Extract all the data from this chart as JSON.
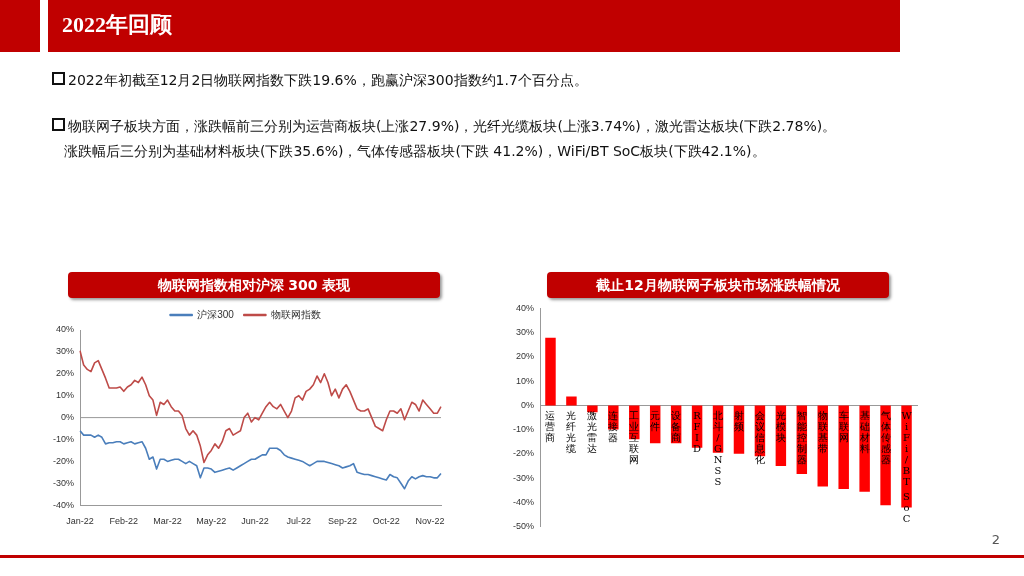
{
  "chart_data": [
    {
      "type": "other",
      "title": "2022年回顾",
      "annotations": [
        "2022年初截至12月2日物联网指数下跌19.6%，跑赢沪深300指数约1.7个百分点。",
        "物联网子板块方面，涨跌幅前三分别为运营商板块(上涨27.9%)，光纤光缆板块(上涨3.74%)，激光雷达板块(下跌2.78%)。",
        "涨跌幅后三分别为基础材料板块(下跌35.6%)，气体传感器板块(下跌 41.2%)，WiFi/BT SoC板块(下跌42.1%)。",
        "2"
      ]
    },
    {
      "type": "line",
      "title": "物联网指数相对沪深 300 表现",
      "legend": "top",
      "grid": false,
      "marker": "none",
      "categories": [
        "Jan-22",
        null,
        null,
        null,
        null,
        null,
        null,
        null,
        null,
        null,
        null,
        null,
        "Feb-22",
        null,
        null,
        null,
        null,
        null,
        null,
        null,
        null,
        null,
        null,
        null,
        "Mar-22",
        null,
        null,
        null,
        null,
        null,
        null,
        null,
        null,
        null,
        null,
        null,
        "May-22",
        null,
        null,
        null,
        null,
        null,
        null,
        null,
        null,
        null,
        null,
        null,
        "Jun-22",
        null,
        null,
        null,
        null,
        null,
        null,
        null,
        null,
        null,
        null,
        null,
        "Jul-22",
        null,
        null,
        null,
        null,
        null,
        null,
        null,
        null,
        null,
        null,
        null,
        "Sep-22",
        null,
        null,
        null,
        null,
        null,
        null,
        null,
        null,
        null,
        null,
        null,
        "Oct-22",
        null,
        null,
        null,
        null,
        null,
        null,
        null,
        null,
        null,
        null,
        null,
        "Nov-22",
        null,
        null,
        null
      ],
      "ref_lines": [
        {
          "axis": "y",
          "value": 0,
          "color": "#999999"
        }
      ],
      "ylim": [
        -40,
        40
      ],
      "yticks": [
        {
          "value": -40,
          "label": "-40%"
        },
        {
          "value": -30,
          "label": "-30%"
        },
        {
          "value": -20,
          "label": "-20%"
        },
        {
          "value": -10,
          "label": "-10%"
        },
        {
          "value": 0,
          "label": "0%"
        },
        {
          "value": 10,
          "label": "10%"
        },
        {
          "value": 20,
          "label": "20%"
        },
        {
          "value": 30,
          "label": "30%"
        },
        {
          "value": 40,
          "label": "40%"
        }
      ],
      "series": [
        {
          "name": "沪深300",
          "color": "#4a7ebb",
          "values": [
            -6,
            -8,
            -8,
            -8,
            -9,
            -8,
            -9,
            -12,
            -11.5,
            -11.5,
            -11,
            -11,
            -12,
            -11.5,
            -11,
            -12,
            -11.5,
            -11,
            -14,
            -19,
            -18,
            -23.5,
            -19,
            -19,
            -20,
            -19.5,
            -19,
            -19,
            -20,
            -21,
            -20,
            -21,
            -22,
            -27.5,
            -23,
            -23,
            -23.5,
            -25,
            -24.5,
            -24,
            -23.5,
            -23,
            -24,
            -23,
            -22,
            -21,
            -20,
            -19,
            -19,
            -18,
            -17,
            -17,
            -14,
            -14,
            -14,
            -15,
            -17,
            -18,
            -18.5,
            -19,
            -19.5,
            -20,
            -21,
            -22,
            -21,
            -20,
            -20,
            -20,
            -20.5,
            -21,
            -21.5,
            -22,
            -23,
            -22.5,
            -22,
            -21,
            -25,
            -25.5,
            -26,
            -26,
            -26.5,
            -27,
            -27.5,
            -28,
            -28.5,
            -26,
            -27,
            -27.5,
            -30,
            -32.5,
            -29,
            -27,
            -28,
            -27,
            -26.5,
            -27,
            -27,
            -27.5,
            -27.5,
            -25.5
          ]
        },
        {
          "name": "物联网指数",
          "color": "#be4b48",
          "values": [
            30.5,
            24,
            22,
            21,
            25,
            26,
            22,
            18,
            13.5,
            13.5,
            13.5,
            14,
            12,
            14,
            15,
            17,
            16,
            18.5,
            15,
            10,
            8,
            1,
            7,
            6,
            8,
            5,
            3,
            3,
            1,
            -5,
            -8,
            -6,
            -8,
            -13,
            -20.5,
            -17,
            -15,
            -12,
            -14,
            -11,
            -6,
            -5,
            -8,
            -7,
            -6,
            0,
            2,
            -2,
            0,
            -1,
            2,
            5,
            7,
            5,
            4,
            6,
            3,
            0,
            3,
            9,
            10,
            8,
            12,
            13,
            15,
            19,
            16,
            20,
            16,
            10,
            13,
            9,
            13,
            15,
            12,
            8,
            4,
            3,
            3,
            4,
            0,
            -4,
            -5,
            -6,
            -1,
            3,
            3,
            2,
            4,
            -1,
            3,
            7,
            6,
            3,
            8,
            6,
            4,
            2,
            2,
            5
          ]
        }
      ]
    },
    {
      "type": "bar",
      "title": "截止12月物联网子板块市场涨跌幅情况",
      "legend": false,
      "grid": false,
      "categories": [
        "运营商",
        "光纤光缆",
        "激光雷达",
        "连接器",
        "工业互联网",
        "元件",
        "设备商",
        "RFID",
        "北斗/GNSS",
        "射频",
        "会议信息化",
        "光模块",
        "智能控制器",
        "物联基带",
        "车联网",
        "基础材料",
        "气体传感器",
        "WiFi/BT SoC"
      ],
      "values": [
        27.9,
        3.7,
        -2.8,
        -10,
        -14,
        -15.6,
        -15.6,
        -17.5,
        -19.5,
        -20,
        -21,
        -25,
        -28.3,
        -33.5,
        -34.5,
        -35.6,
        -41.2,
        -42.1
      ],
      "color": "#ff0000",
      "ylim": [
        -50,
        40
      ],
      "yticks": [
        {
          "value": -50,
          "label": "-50%"
        },
        {
          "value": -40,
          "label": "-40%"
        },
        {
          "value": -30,
          "label": "-30%"
        },
        {
          "value": -20,
          "label": "-20%"
        },
        {
          "value": -10,
          "label": "-10%"
        },
        {
          "value": 0,
          "label": "0%"
        },
        {
          "value": 10,
          "label": "10%"
        },
        {
          "value": 20,
          "label": "20%"
        },
        {
          "value": 30,
          "label": "30%"
        },
        {
          "value": 40,
          "label": "40%"
        }
      ]
    }
  ]
}
